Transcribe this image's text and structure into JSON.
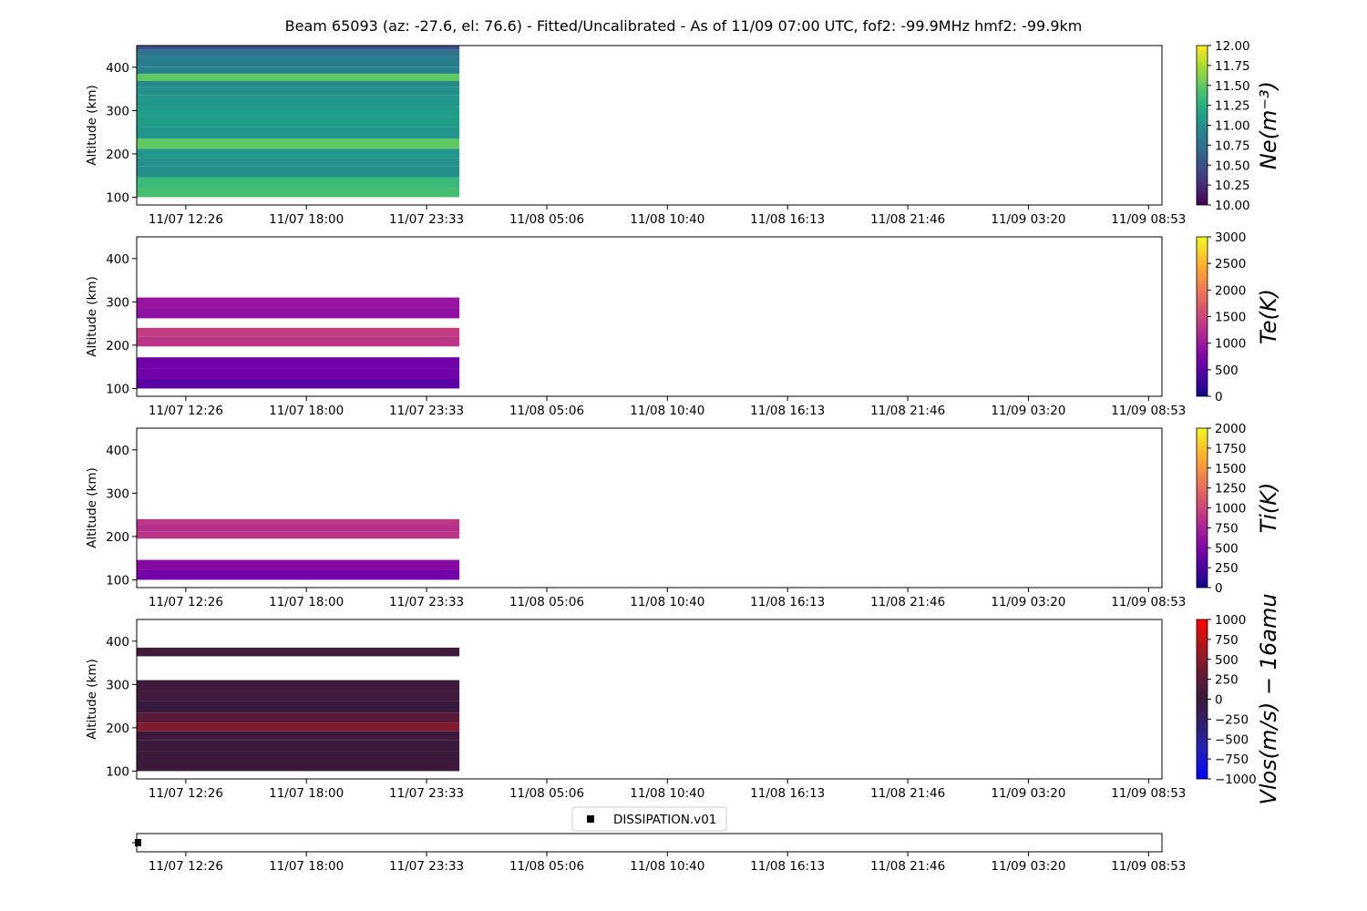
{
  "chart_data": {
    "type": "heatmap",
    "title": "Beam 65093 (az: -27.6, el: 76.6) - Fitted/Uncalibrated - As of 11/09 07:00 UTC, fof2: -99.9MHz  hmf2: -99.9km",
    "x_ticks": [
      "11/07 12:26",
      "11/07 18:00",
      "11/07 23:33",
      "11/08 05:06",
      "11/08 10:40",
      "11/08 16:13",
      "11/08 21:46",
      "11/09 03:20",
      "11/09 08:53"
    ],
    "x_range": [
      "11/07 10:10",
      "11/09 09:30"
    ],
    "data_x_range": [
      "11/07 10:10",
      "11/08 01:04"
    ],
    "ylabel": "Altitude (km)",
    "ylim": [
      82,
      450
    ],
    "y_ticks": [
      100,
      200,
      300,
      400
    ],
    "panels": [
      {
        "name": "ne",
        "colorbar_label": "Ne(m⁻³)",
        "colormap": "viridis",
        "clim": [
          10,
          12
        ],
        "colorbar_ticks": [
          "10.00",
          "10.25",
          "10.50",
          "10.75",
          "11.00",
          "11.25",
          "11.50",
          "11.75",
          "12.00"
        ],
        "rows": [
          {
            "alt": [
              100,
              122
            ],
            "value": 11.4
          },
          {
            "alt": [
              122,
              146
            ],
            "value": 11.35
          },
          {
            "alt": [
              146,
              172
            ],
            "value": 11.0
          },
          {
            "alt": [
              172,
              190
            ],
            "value": 11.0
          },
          {
            "alt": [
              190,
              212
            ],
            "value": 11.05
          },
          {
            "alt": [
              212,
              235
            ],
            "value": 11.5
          },
          {
            "alt": [
              235,
              262
            ],
            "value": 11.05
          },
          {
            "alt": [
              262,
              285
            ],
            "value": 11.1
          },
          {
            "alt": [
              285,
              310
            ],
            "value": 11.1
          },
          {
            "alt": [
              310,
              335
            ],
            "value": 11.05
          },
          {
            "alt": [
              335,
              355
            ],
            "value": 11.0
          },
          {
            "alt": [
              355,
              368
            ],
            "value": 10.95
          },
          {
            "alt": [
              368,
              385
            ],
            "value": 11.5
          },
          {
            "alt": [
              385,
              400
            ],
            "value": 10.9
          },
          {
            "alt": [
              400,
              426
            ],
            "value": 10.85
          },
          {
            "alt": [
              426,
              440
            ],
            "value": 10.75
          },
          {
            "alt": [
              440,
              450
            ],
            "value": 10.5
          }
        ]
      },
      {
        "name": "te",
        "colorbar_label": "Te(K)",
        "colormap": "plasma",
        "clim": [
          0,
          3000
        ],
        "colorbar_ticks": [
          "0",
          "500",
          "1000",
          "1500",
          "2000",
          "2500",
          "3000"
        ],
        "rows": [
          {
            "alt": [
              100,
              122
            ],
            "value": 500
          },
          {
            "alt": [
              122,
              146
            ],
            "value": 650
          },
          {
            "alt": [
              146,
              172
            ],
            "value": 650
          },
          {
            "alt": [
              197,
              220
            ],
            "value": 1300
          },
          {
            "alt": [
              220,
              240
            ],
            "value": 1400
          },
          {
            "alt": [
              262,
              285
            ],
            "value": 900
          },
          {
            "alt": [
              285,
              310
            ],
            "value": 950
          }
        ]
      },
      {
        "name": "ti",
        "colorbar_label": "Ti(K)",
        "colormap": "plasma",
        "clim": [
          0,
          2000
        ],
        "colorbar_ticks": [
          "0",
          "250",
          "500",
          "750",
          "1000",
          "1250",
          "1500",
          "1750",
          "2000"
        ],
        "rows": [
          {
            "alt": [
              100,
              122
            ],
            "value": 450
          },
          {
            "alt": [
              122,
              146
            ],
            "value": 550
          },
          {
            "alt": [
              195,
              212
            ],
            "value": 880
          },
          {
            "alt": [
              212,
              225
            ],
            "value": 830
          },
          {
            "alt": [
              225,
              240
            ],
            "value": 880
          }
        ]
      },
      {
        "name": "vlos",
        "colorbar_label": "Vlos(m/s) − 16amu",
        "colormap": "bluered",
        "clim": [
          -1000,
          1000
        ],
        "colorbar_ticks": [
          "−1000",
          "−750",
          "−500",
          "−250",
          "0",
          "250",
          "500",
          "750",
          "1000"
        ],
        "rows": [
          {
            "alt": [
              100,
              122
            ],
            "value": 20
          },
          {
            "alt": [
              122,
              146
            ],
            "value": 10
          },
          {
            "alt": [
              146,
              172
            ],
            "value": 0
          },
          {
            "alt": [
              172,
              192
            ],
            "value": 20
          },
          {
            "alt": [
              192,
              212
            ],
            "value": 450
          },
          {
            "alt": [
              212,
              235
            ],
            "value": 250
          },
          {
            "alt": [
              235,
              262
            ],
            "value": -20
          },
          {
            "alt": [
              262,
              285
            ],
            "value": 50
          },
          {
            "alt": [
              285,
              310
            ],
            "value": 20
          },
          {
            "alt": [
              365,
              385
            ],
            "value": 60
          }
        ]
      }
    ],
    "legend": {
      "entries": [
        "DISSIPATION.v01"
      ],
      "marker": "black-square"
    }
  }
}
